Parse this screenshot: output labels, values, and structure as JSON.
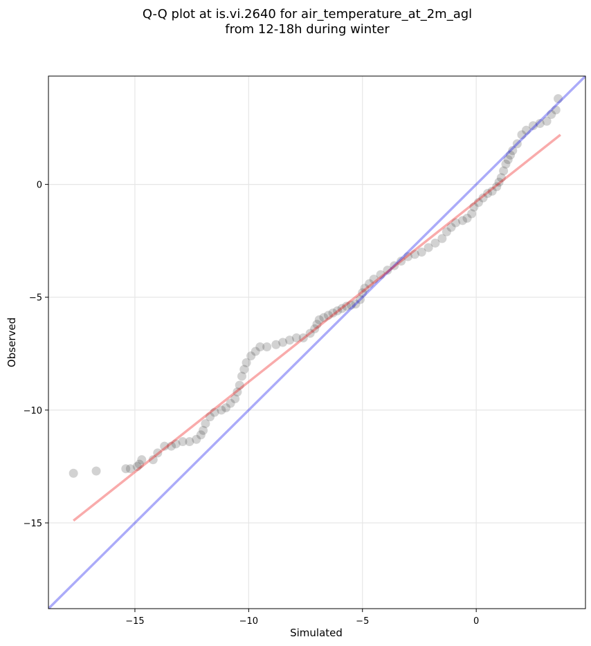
{
  "chart_data": {
    "type": "scatter",
    "title_line1": "Q-Q plot at is.vi.2640 for air_temperature_at_2m_agl",
    "title_line2": "from 12-18h during winter",
    "xlabel": "Simulated",
    "ylabel": "Observed",
    "xlim": [
      -18.8,
      4.8
    ],
    "ylim": [
      -18.8,
      4.8
    ],
    "xticks": [
      -15,
      -10,
      -5,
      0
    ],
    "yticks": [
      0,
      -5,
      -10,
      -15
    ],
    "xtick_labels": [
      "−15",
      "−10",
      "−5",
      "0"
    ],
    "ytick_labels": [
      "0",
      "−5",
      "−10",
      "−15"
    ],
    "grid": true,
    "identity_line": {
      "color": "#0000ee",
      "opacity": 0.33
    },
    "fit_line": {
      "x": [
        -17.7,
        3.7
      ],
      "y": [
        -14.9,
        2.2
      ],
      "color": "#ee0000",
      "opacity": 0.33
    },
    "point_color": "#333333",
    "points": [
      [
        -17.7,
        -12.8
      ],
      [
        -16.7,
        -12.7
      ],
      [
        -15.4,
        -12.6
      ],
      [
        -15.2,
        -12.6
      ],
      [
        -14.9,
        -12.5
      ],
      [
        -14.8,
        -12.4
      ],
      [
        -14.7,
        -12.2
      ],
      [
        -14.2,
        -12.2
      ],
      [
        -14.0,
        -11.9
      ],
      [
        -13.7,
        -11.6
      ],
      [
        -13.4,
        -11.6
      ],
      [
        -13.2,
        -11.5
      ],
      [
        -12.9,
        -11.4
      ],
      [
        -12.6,
        -11.4
      ],
      [
        -12.3,
        -11.3
      ],
      [
        -12.1,
        -11.1
      ],
      [
        -12.0,
        -10.9
      ],
      [
        -11.9,
        -10.6
      ],
      [
        -11.7,
        -10.3
      ],
      [
        -11.5,
        -10.1
      ],
      [
        -11.2,
        -10.0
      ],
      [
        -11.0,
        -9.9
      ],
      [
        -10.8,
        -9.7
      ],
      [
        -10.6,
        -9.5
      ],
      [
        -10.5,
        -9.2
      ],
      [
        -10.4,
        -8.9
      ],
      [
        -10.3,
        -8.5
      ],
      [
        -10.2,
        -8.2
      ],
      [
        -10.1,
        -7.9
      ],
      [
        -9.9,
        -7.6
      ],
      [
        -9.7,
        -7.4
      ],
      [
        -9.5,
        -7.2
      ],
      [
        -9.2,
        -7.2
      ],
      [
        -8.8,
        -7.1
      ],
      [
        -8.5,
        -7.0
      ],
      [
        -8.2,
        -6.9
      ],
      [
        -7.9,
        -6.8
      ],
      [
        -7.6,
        -6.8
      ],
      [
        -7.3,
        -6.6
      ],
      [
        -7.1,
        -6.4
      ],
      [
        -7.0,
        -6.2
      ],
      [
        -6.9,
        -6.0
      ],
      [
        -6.7,
        -5.9
      ],
      [
        -6.5,
        -5.8
      ],
      [
        -6.3,
        -5.7
      ],
      [
        -6.1,
        -5.6
      ],
      [
        -5.9,
        -5.5
      ],
      [
        -5.7,
        -5.4
      ],
      [
        -5.5,
        -5.35
      ],
      [
        -5.3,
        -5.3
      ],
      [
        -5.1,
        -5.1
      ],
      [
        -5.0,
        -4.8
      ],
      [
        -4.9,
        -4.6
      ],
      [
        -4.7,
        -4.4
      ],
      [
        -4.5,
        -4.2
      ],
      [
        -4.2,
        -4.0
      ],
      [
        -3.9,
        -3.8
      ],
      [
        -3.6,
        -3.6
      ],
      [
        -3.3,
        -3.4
      ],
      [
        -3.0,
        -3.2
      ],
      [
        -2.7,
        -3.1
      ],
      [
        -2.4,
        -3.0
      ],
      [
        -2.1,
        -2.8
      ],
      [
        -1.8,
        -2.6
      ],
      [
        -1.5,
        -2.4
      ],
      [
        -1.3,
        -2.1
      ],
      [
        -1.1,
        -1.9
      ],
      [
        -0.9,
        -1.7
      ],
      [
        -0.6,
        -1.6
      ],
      [
        -0.4,
        -1.5
      ],
      [
        -0.2,
        -1.3
      ],
      [
        -0.1,
        -1.0
      ],
      [
        0.1,
        -0.8
      ],
      [
        0.3,
        -0.6
      ],
      [
        0.5,
        -0.4
      ],
      [
        0.7,
        -0.3
      ],
      [
        0.9,
        -0.1
      ],
      [
        1.0,
        0.1
      ],
      [
        1.1,
        0.3
      ],
      [
        1.2,
        0.6
      ],
      [
        1.3,
        0.9
      ],
      [
        1.4,
        1.1
      ],
      [
        1.5,
        1.3
      ],
      [
        1.6,
        1.5
      ],
      [
        1.8,
        1.8
      ],
      [
        2.0,
        2.2
      ],
      [
        2.2,
        2.4
      ],
      [
        2.5,
        2.6
      ],
      [
        2.8,
        2.7
      ],
      [
        3.1,
        2.8
      ],
      [
        3.3,
        3.1
      ],
      [
        3.5,
        3.3
      ],
      [
        3.6,
        3.8
      ]
    ]
  }
}
